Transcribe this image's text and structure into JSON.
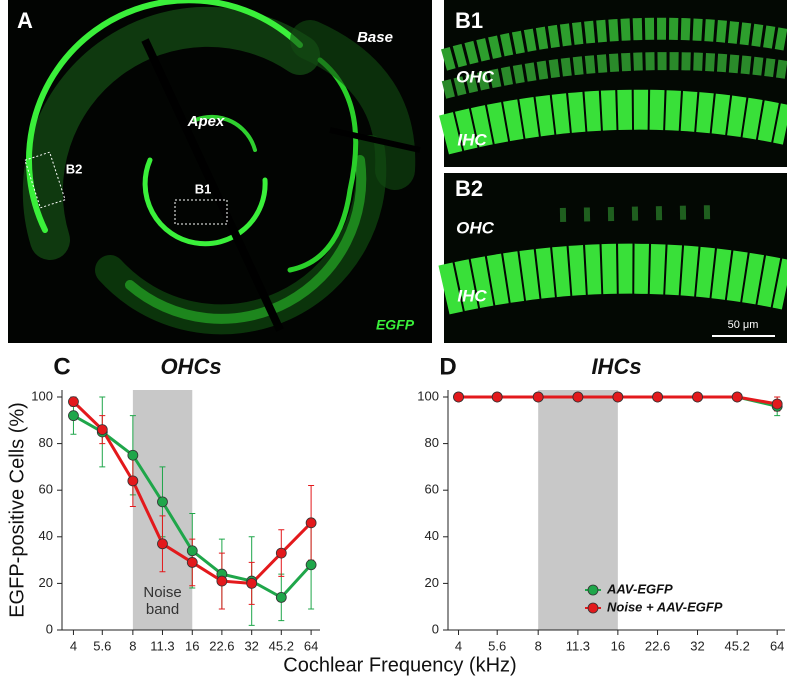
{
  "images": {
    "panel_a": {
      "letter": "A",
      "base": "Base",
      "apex": "Apex",
      "box_b2": "B2",
      "box_b1": "B1",
      "stain": "EGFP"
    },
    "panel_b1": {
      "letter": "B1",
      "ohc": "OHC",
      "ihc": "IHC"
    },
    "panel_b2": {
      "letter": "B2",
      "ohc": "OHC",
      "ihc": "IHC",
      "scale_bar": "50 μm"
    }
  },
  "figure": {
    "y_label": "EGFP-positive Cells (%)",
    "x_label": "Cochlear Frequency (kHz)"
  },
  "chart_data": [
    {
      "type": "line",
      "panel": "C",
      "title": "OHCs",
      "x": [
        4,
        5.6,
        8,
        11.3,
        16,
        22.6,
        32,
        45.2,
        64
      ],
      "xscale": "log",
      "xlim": [
        3.5,
        71
      ],
      "xticks": [
        4,
        5.6,
        8,
        11.3,
        16,
        22.6,
        32,
        45.2,
        64
      ],
      "ylim": [
        0,
        103
      ],
      "yticks": [
        0,
        20,
        40,
        60,
        80,
        100
      ],
      "band": {
        "from": 8,
        "to": 16,
        "label": "Noise band",
        "color": "#c8c8c8"
      },
      "series": [
        {
          "name": "AAV-EGFP",
          "color": "#1fa64a",
          "values": [
            92,
            85,
            75,
            55,
            34,
            24,
            21,
            14,
            28
          ],
          "errors": [
            8,
            15,
            17,
            15,
            16,
            15,
            19,
            10,
            19
          ]
        },
        {
          "name": "Noise + AAV-EGFP",
          "color": "#e3191c",
          "values": [
            98,
            86,
            64,
            37,
            29,
            21,
            20,
            33,
            46
          ],
          "errors": [
            2,
            6,
            11,
            12,
            10,
            12,
            9,
            10,
            16
          ]
        }
      ]
    },
    {
      "type": "line",
      "panel": "D",
      "title": "IHCs",
      "x": [
        4,
        5.6,
        8,
        11.3,
        16,
        22.6,
        32,
        45.2,
        64
      ],
      "xscale": "log",
      "xlim": [
        3.65,
        68.5
      ],
      "xticks": [
        4,
        5.6,
        8,
        11.3,
        16,
        22.6,
        32,
        45.2,
        64
      ],
      "ylim": [
        0,
        103
      ],
      "yticks": [
        0,
        20,
        40,
        60,
        80,
        100
      ],
      "band": {
        "from": 8,
        "to": 16,
        "color": "#c8c8c8"
      },
      "legend": "lower right",
      "series": [
        {
          "name": "AAV-EGFP",
          "color": "#1fa64a",
          "values": [
            100,
            100,
            100,
            100,
            100,
            100,
            100,
            100,
            96
          ],
          "errors": [
            0,
            0,
            0,
            0,
            0,
            0,
            0,
            0,
            4
          ]
        },
        {
          "name": "Noise + AAV-EGFP",
          "color": "#e3191c",
          "values": [
            100,
            100,
            100,
            100,
            100,
            100,
            100,
            100,
            97
          ],
          "errors": [
            0,
            0,
            0,
            0,
            0,
            0,
            0,
            0,
            3
          ]
        }
      ]
    }
  ]
}
